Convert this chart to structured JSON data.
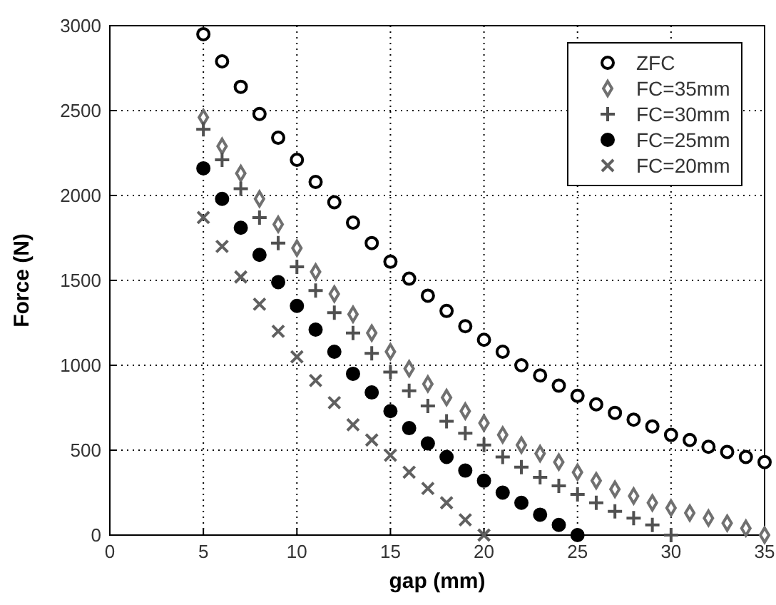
{
  "chart_data": {
    "type": "scatter",
    "xlabel": "gap (mm)",
    "ylabel": "Force (N)",
    "xlim": [
      0,
      35
    ],
    "ylim": [
      0,
      3000
    ],
    "xticks": [
      0,
      5,
      10,
      15,
      20,
      25,
      30,
      35
    ],
    "yticks": [
      0,
      500,
      1000,
      1500,
      2000,
      2500,
      3000
    ],
    "grid": true,
    "legend": "top right",
    "series": [
      {
        "name": "ZFC",
        "color": "#000000",
        "marker": "circle",
        "x": [
          5,
          6,
          7,
          8,
          9,
          10,
          11,
          12,
          13,
          14,
          15,
          16,
          17,
          18,
          19,
          20,
          21,
          22,
          23,
          24,
          25,
          26,
          27,
          28,
          29,
          30,
          31,
          32,
          33,
          34,
          35
        ],
        "values": [
          2950,
          2790,
          2640,
          2480,
          2340,
          2210,
          2080,
          1960,
          1840,
          1720,
          1610,
          1510,
          1410,
          1320,
          1230,
          1150,
          1080,
          1000,
          940,
          880,
          820,
          770,
          720,
          680,
          640,
          590,
          560,
          520,
          490,
          460,
          430
        ]
      },
      {
        "name": "FC=35mm",
        "color": "#707070",
        "marker": "diamond",
        "x": [
          5,
          6,
          7,
          8,
          9,
          10,
          11,
          12,
          13,
          14,
          15,
          16,
          17,
          18,
          19,
          20,
          21,
          22,
          23,
          24,
          25,
          26,
          27,
          28,
          29,
          30,
          31,
          32,
          33,
          34,
          35
        ],
        "values": [
          2460,
          2290,
          2130,
          1980,
          1830,
          1690,
          1550,
          1420,
          1300,
          1190,
          1080,
          980,
          890,
          810,
          730,
          660,
          590,
          530,
          480,
          430,
          370,
          320,
          270,
          230,
          190,
          160,
          130,
          100,
          70,
          40,
          0
        ]
      },
      {
        "name": "FC=30mm",
        "color": "#505050",
        "marker": "cross",
        "x": [
          5,
          6,
          7,
          8,
          9,
          10,
          11,
          12,
          13,
          14,
          15,
          16,
          17,
          18,
          19,
          20,
          21,
          22,
          23,
          24,
          25,
          26,
          27,
          28,
          29,
          30
        ],
        "values": [
          2390,
          2210,
          2040,
          1870,
          1720,
          1580,
          1440,
          1310,
          1190,
          1070,
          960,
          850,
          760,
          670,
          600,
          530,
          460,
          400,
          340,
          290,
          240,
          190,
          140,
          100,
          60,
          0
        ]
      },
      {
        "name": "FC=25mm",
        "color": "#000000",
        "marker": "circle-filled",
        "x": [
          5,
          6,
          7,
          8,
          9,
          10,
          11,
          12,
          13,
          14,
          15,
          16,
          17,
          18,
          19,
          20,
          21,
          22,
          23,
          24,
          25
        ],
        "values": [
          2160,
          1980,
          1810,
          1650,
          1490,
          1350,
          1210,
          1080,
          950,
          840,
          730,
          630,
          540,
          460,
          380,
          320,
          250,
          190,
          120,
          60,
          0
        ]
      },
      {
        "name": "FC=20mm",
        "color": "#606060",
        "marker": "x",
        "x": [
          5,
          6,
          7,
          8,
          9,
          10,
          11,
          12,
          13,
          14,
          15,
          16,
          17,
          18,
          19,
          20
        ],
        "values": [
          1870,
          1700,
          1520,
          1360,
          1200,
          1050,
          910,
          780,
          650,
          560,
          470,
          370,
          275,
          190,
          90,
          0
        ]
      }
    ]
  }
}
